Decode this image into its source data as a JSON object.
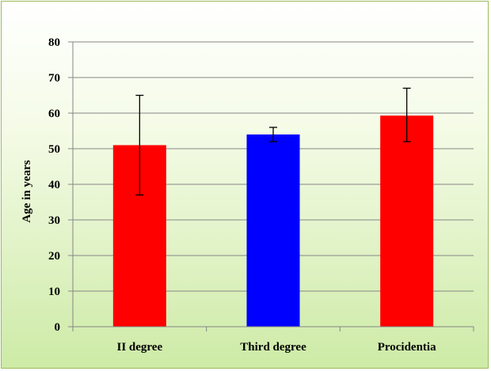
{
  "chart_data": {
    "type": "bar",
    "title": "",
    "xlabel": "",
    "ylabel": "Age in years",
    "ylim": [
      0,
      80
    ],
    "yticks": [
      0,
      10,
      20,
      30,
      40,
      50,
      60,
      70,
      80
    ],
    "grid": true,
    "legend": "none",
    "categories": [
      "II degree",
      "Third degree",
      "Procidentia"
    ],
    "values": [
      51,
      54,
      59.3
    ],
    "error_low": [
      37,
      52,
      52
    ],
    "error_high": [
      65,
      56,
      67
    ],
    "colors": [
      "#ff0000",
      "#0000ff",
      "#ff0000"
    ]
  }
}
